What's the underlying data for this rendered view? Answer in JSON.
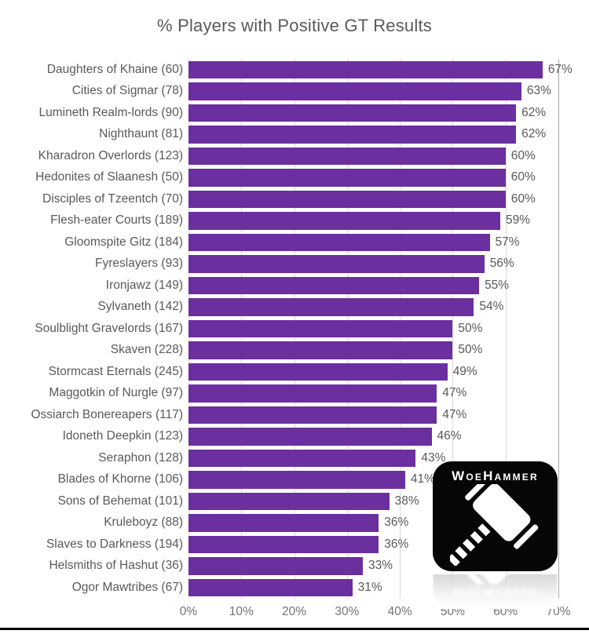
{
  "chart_data": {
    "type": "bar",
    "orientation": "horizontal",
    "title": "% Players with Positive GT Results",
    "categories": [
      "Daughters of Khaine (60)",
      "Cities of Sigmar (78)",
      "Lumineth Realm-lords (90)",
      "Nighthaunt (81)",
      "Kharadron Overlords (123)",
      "Hedonites of Slaanesh (50)",
      "Disciples of Tzeentch (70)",
      "Flesh-eater Courts (189)",
      "Gloomspite Gitz (184)",
      "Fyreslayers (93)",
      "Ironjawz (149)",
      "Sylvaneth (142)",
      "Soulblight Gravelords (167)",
      "Skaven (228)",
      "Stormcast Eternals (245)",
      "Maggotkin of Nurgle (97)",
      "Ossiarch Bonereapers (117)",
      "Idoneth Deepkin (123)",
      "Seraphon (128)",
      "Blades of Khorne (106)",
      "Sons of Behemat (101)",
      "Kruleboyz (88)",
      "Slaves to Darkness (194)",
      "Helsmiths of Hashut (36)",
      "Ogor Mawtribes (67)"
    ],
    "values": [
      67,
      63,
      62,
      62,
      60,
      60,
      60,
      59,
      57,
      56,
      55,
      54,
      50,
      50,
      49,
      47,
      47,
      46,
      43,
      41,
      38,
      36,
      36,
      33,
      31
    ],
    "value_suffix": "%",
    "xlabel": "",
    "ylabel": "",
    "xlim": [
      0,
      70
    ],
    "x_ticks": [
      "0%",
      "10%",
      "20%",
      "30%",
      "40%",
      "50%",
      "60%",
      "70%"
    ],
    "grid": true,
    "legend": false,
    "bar_color": "#6B2F9F",
    "title_color": "#595959",
    "label_color": "#595959",
    "tick_color": "#737373",
    "gridline_color": "#D9D9D9",
    "gridline_end_color": "#A9A9A9"
  },
  "logo": {
    "text": "WoeHammer",
    "icon": "hammer-icon",
    "bg_color": "#060606",
    "fg_color": "#FFFFFF"
  },
  "footer": {
    "bottom_rule_color": "#000000"
  }
}
